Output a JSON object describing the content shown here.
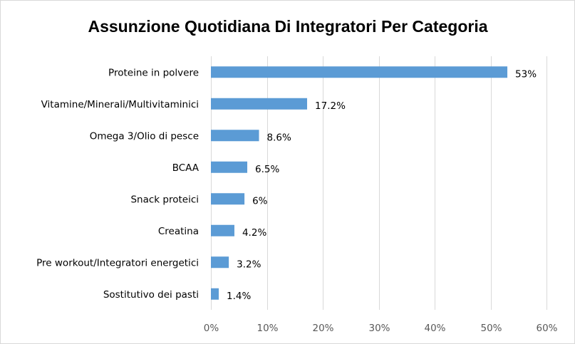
{
  "chart_data": {
    "type": "bar",
    "orientation": "horizontal",
    "title": "Assunzione Quotidiana Di Integratori Per Categoria",
    "categories": [
      "Proteine in polvere",
      "Vitamine/Minerali/Multivitaminici",
      "Omega 3/Olio di pesce",
      "BCAA",
      "Snack proteici",
      "Creatina",
      "Pre workout/Integratori energetici",
      "Sostitutivo dei pasti"
    ],
    "values": [
      53,
      17.2,
      8.6,
      6.5,
      6,
      4.2,
      3.2,
      1.4
    ],
    "data_labels": [
      "53%",
      "17.2%",
      "8.6%",
      "6.5%",
      "6%",
      "4.2%",
      "3.2%",
      "1.4%"
    ],
    "xlim": [
      0,
      60
    ],
    "x_ticks": [
      0,
      10,
      20,
      30,
      40,
      50,
      60
    ],
    "x_tick_labels": [
      "0%",
      "10%",
      "20%",
      "30%",
      "40%",
      "50%",
      "60%"
    ],
    "grid": "vertical",
    "legend": "none",
    "colors": {
      "bar": "#5b9bd5",
      "grid": "#d9d9d9",
      "tick_text": "#595959"
    }
  }
}
